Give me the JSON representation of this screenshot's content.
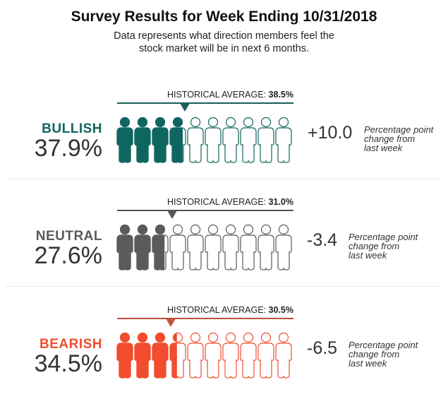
{
  "title": "Survey Results for Week Ending 10/31/2018",
  "subtitle_line1": "Data represents what direction members feel the",
  "subtitle_line2": "stock market will be in next 6 months.",
  "hist_label": "HISTORICAL AVERAGE:",
  "change_note_line1": "Percentage point",
  "change_note_line2": "change from",
  "change_note_line3": "last week",
  "chart_data": {
    "type": "pictogram",
    "figures_per_row": 10,
    "categories": [
      "BULLISH",
      "NEUTRAL",
      "BEARISH"
    ],
    "series": [
      {
        "name": "BULLISH",
        "value": 37.9,
        "value_label": "37.9%",
        "historical_average": 38.5,
        "historical_label": "38.5%",
        "change": 10.0,
        "change_label": "+10.0",
        "color": "#0f6660",
        "line_color": "#1a5f59"
      },
      {
        "name": "NEUTRAL",
        "value": 27.6,
        "value_label": "27.6%",
        "historical_average": 31.0,
        "historical_label": "31.0%",
        "change": -3.4,
        "change_label": "-3.4",
        "color": "#5b5b5b",
        "line_color": "#555555"
      },
      {
        "name": "BEARISH",
        "value": 34.5,
        "value_label": "34.5%",
        "historical_average": 30.5,
        "historical_label": "30.5%",
        "change": -6.5,
        "change_label": "-6.5",
        "color": "#f24d2e",
        "line_color": "#c1503f"
      }
    ]
  }
}
